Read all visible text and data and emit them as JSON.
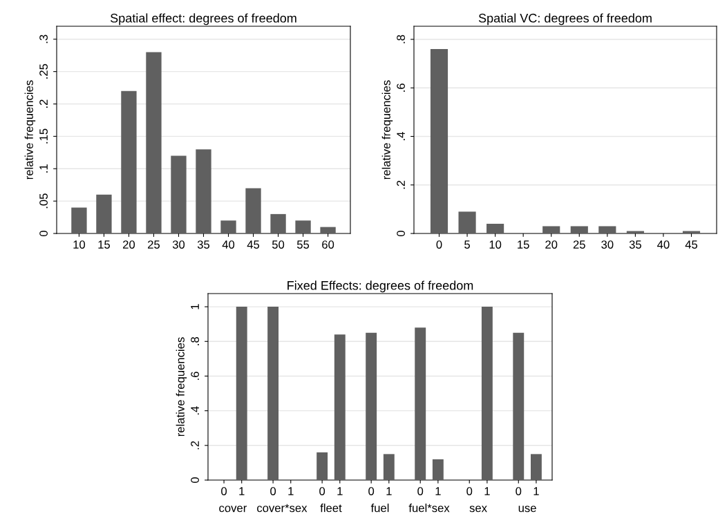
{
  "chart_data": [
    {
      "type": "bar",
      "title": "Spatial effect: degrees of freedom",
      "ylabel": "relative frequencies",
      "categories": [
        "10",
        "15",
        "20",
        "25",
        "30",
        "35",
        "40",
        "45",
        "50",
        "55",
        "60"
      ],
      "values": [
        0.04,
        0.06,
        0.22,
        0.28,
        0.12,
        0.13,
        0.02,
        0.07,
        0.03,
        0.02,
        0.01
      ],
      "color": "#606060",
      "ylim": [
        0,
        0.32
      ],
      "yticks": [
        0,
        {
          "value": 0.05,
          "label": ".05"
        },
        {
          "value": 0.1,
          "label": ".1"
        },
        {
          "value": 0.15,
          "label": ".15"
        },
        {
          "value": 0.2,
          "label": ".2"
        },
        {
          "value": 0.25,
          "label": ".25"
        },
        {
          "value": 0.3,
          "label": ".3"
        }
      ],
      "grid": "y",
      "legend": false
    },
    {
      "type": "bar",
      "title": "Spatial VC: degrees of freedom",
      "ylabel": "relative frequencies",
      "categories": [
        "0",
        "5",
        "10",
        "15",
        "20",
        "25",
        "30",
        "35",
        "40",
        "45"
      ],
      "values": [
        0.76,
        0.09,
        0.04,
        0,
        0.03,
        0.03,
        0.03,
        0.01,
        0,
        0.01
      ],
      "color": "#606060",
      "ylim": [
        0,
        0.854
      ],
      "yticks": [
        0,
        {
          "value": 0.2,
          "label": ".2"
        },
        {
          "value": 0.4,
          "label": ".4"
        },
        {
          "value": 0.6,
          "label": ".6"
        },
        {
          "value": 0.8,
          "label": ".8"
        }
      ],
      "grid": "y",
      "legend": false
    },
    {
      "type": "bar",
      "title": "Fixed Effects: degrees of freedom",
      "ylabel": "relative frequencies",
      "categories": [
        "0",
        "1",
        "0",
        "1",
        "0",
        "1",
        "0",
        "1",
        "0",
        "1",
        "0",
        "1",
        "0",
        "1"
      ],
      "values": [
        0,
        1,
        1,
        0,
        0.16,
        0.84,
        0.85,
        0.15,
        0.88,
        0.12,
        0,
        1,
        0.85,
        0.15
      ],
      "color": "#606060",
      "ylim": [
        0,
        1.076
      ],
      "yticks": [
        0,
        {
          "value": 0.2,
          "label": ".2"
        },
        {
          "value": 0.4,
          "label": ".4"
        },
        {
          "value": 0.6,
          "label": ".6"
        },
        {
          "value": 0.8,
          "label": ".8"
        },
        1
      ],
      "grid": "y",
      "legend": false,
      "annotations": [
        "cover",
        "cover*sex",
        "fleet",
        "fuel",
        "fuel*sex",
        "sex",
        "use"
      ]
    }
  ]
}
